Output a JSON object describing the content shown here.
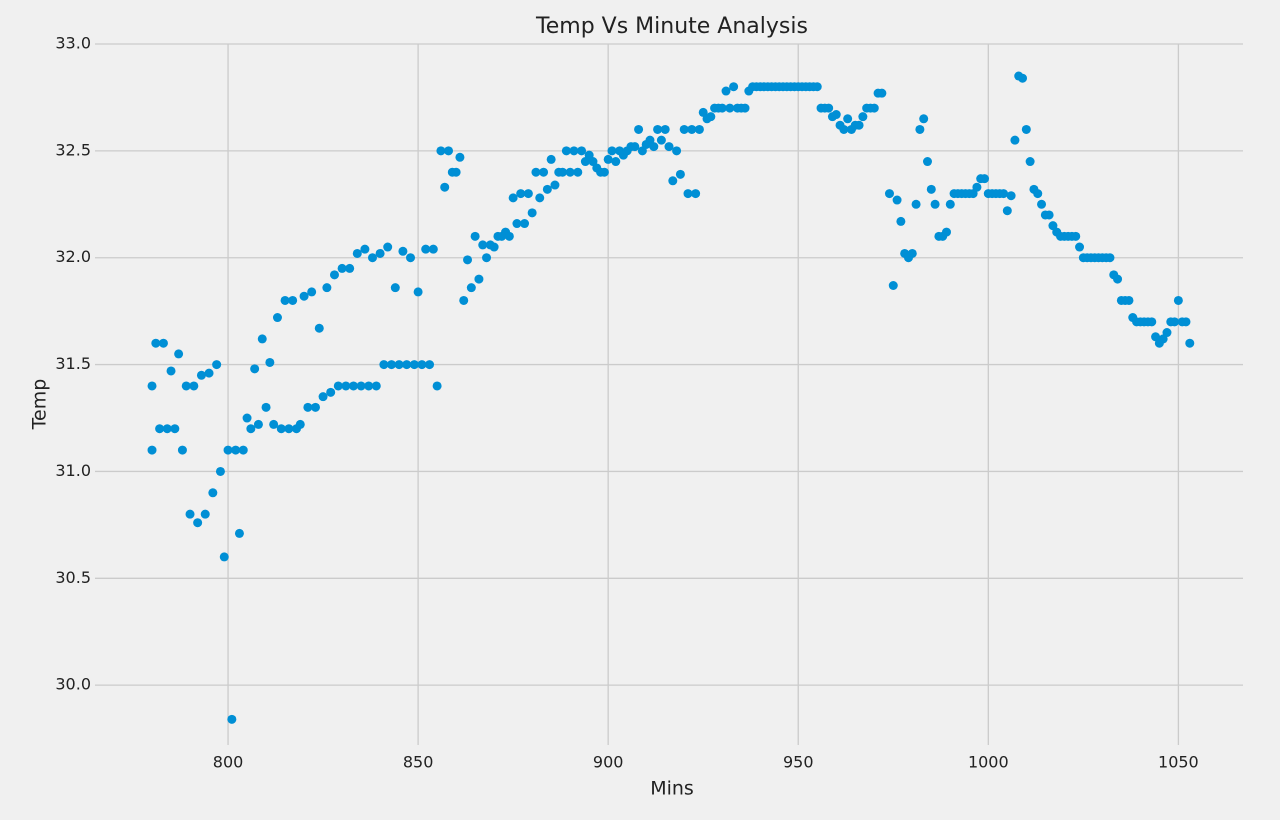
{
  "chart_data": {
    "type": "scatter",
    "title": "Temp Vs Minute Analysis",
    "x_label": "Mins",
    "y_label": "Temp",
    "color": "#008fd5",
    "grid": true,
    "xlim": [
      765,
      1067
    ],
    "ylim": [
      29.72,
      33.0
    ],
    "xticks": [
      800,
      850,
      900,
      950,
      1000,
      1050
    ],
    "yticks": [
      {
        "value": 30,
        "label": "30.0"
      },
      30.5,
      {
        "value": 31,
        "label": "31.0"
      },
      31.5,
      {
        "value": 32,
        "label": "32.0"
      },
      32.5,
      {
        "value": 33,
        "label": "33.0"
      }
    ],
    "x": [
      780,
      780,
      781,
      782,
      783,
      784,
      785,
      786,
      787,
      788,
      789,
      790,
      791,
      792,
      793,
      794,
      795,
      796,
      797,
      798,
      799,
      800,
      801,
      802,
      803,
      804,
      805,
      806,
      807,
      808,
      809,
      810,
      811,
      812,
      813,
      814,
      815,
      816,
      817,
      818,
      819,
      820,
      821,
      822,
      823,
      824,
      825,
      826,
      827,
      828,
      829,
      830,
      831,
      832,
      833,
      834,
      835,
      836,
      837,
      838,
      839,
      840,
      841,
      842,
      843,
      844,
      845,
      846,
      847,
      848,
      849,
      850,
      851,
      852,
      853,
      854,
      855,
      856,
      857,
      858,
      859,
      860,
      861,
      862,
      863,
      864,
      865,
      866,
      867,
      868,
      869,
      870,
      871,
      872,
      873,
      874,
      875,
      876,
      877,
      878,
      879,
      880,
      881,
      882,
      883,
      884,
      885,
      886,
      887,
      888,
      889,
      890,
      891,
      892,
      893,
      894,
      895,
      896,
      897,
      898,
      899,
      900,
      901,
      902,
      903,
      904,
      905,
      906,
      907,
      908,
      909,
      910,
      911,
      912,
      913,
      914,
      915,
      916,
      917,
      918,
      919,
      920,
      921,
      922,
      923,
      924,
      925,
      926,
      927,
      928,
      929,
      930,
      931,
      932,
      933,
      934,
      935,
      936,
      937,
      938,
      939,
      940,
      941,
      942,
      943,
      944,
      945,
      946,
      947,
      948,
      949,
      950,
      951,
      952,
      953,
      954,
      955,
      956,
      957,
      958,
      959,
      960,
      961,
      962,
      963,
      964,
      965,
      966,
      967,
      968,
      969,
      970,
      971,
      972,
      974,
      975,
      976,
      977,
      978,
      979,
      980,
      981,
      982,
      983,
      984,
      985,
      986,
      987,
      988,
      989,
      990,
      991,
      992,
      993,
      994,
      995,
      996,
      997,
      998,
      999,
      1000,
      1001,
      1002,
      1003,
      1004,
      1005,
      1006,
      1007,
      1008,
      1009,
      1010,
      1011,
      1012,
      1013,
      1014,
      1015,
      1016,
      1017,
      1018,
      1019,
      1020,
      1021,
      1022,
      1023,
      1024,
      1025,
      1026,
      1027,
      1028,
      1029,
      1030,
      1031,
      1032,
      1033,
      1034,
      1035,
      1036,
      1037,
      1038,
      1039,
      1040,
      1041,
      1042,
      1043,
      1044,
      1045,
      1046,
      1047,
      1048,
      1049,
      1050,
      1051,
      1052,
      1053
    ],
    "values": [
      31.4,
      31.1,
      31.6,
      31.2,
      31.6,
      31.2,
      31.47,
      31.2,
      31.55,
      31.1,
      31.4,
      30.8,
      31.4,
      30.76,
      31.45,
      30.8,
      31.46,
      30.9,
      31.5,
      31.0,
      30.6,
      31.1,
      29.84,
      31.1,
      30.71,
      31.1,
      31.25,
      31.2,
      31.48,
      31.22,
      31.62,
      31.3,
      31.51,
      31.22,
      31.72,
      31.2,
      31.8,
      31.2,
      31.8,
      31.2,
      31.22,
      31.82,
      31.3,
      31.84,
      31.3,
      31.67,
      31.35,
      31.86,
      31.37,
      31.92,
      31.4,
      31.95,
      31.4,
      31.95,
      31.4,
      32.02,
      31.4,
      32.04,
      31.4,
      32.0,
      31.4,
      32.02,
      31.5,
      32.05,
      31.5,
      31.86,
      31.5,
      32.03,
      31.5,
      32.0,
      31.5,
      31.84,
      31.5,
      32.04,
      31.5,
      32.04,
      31.4,
      32.5,
      32.33,
      32.5,
      32.4,
      32.4,
      32.47,
      31.8,
      31.99,
      31.86,
      32.1,
      31.9,
      32.06,
      32.0,
      32.06,
      32.05,
      32.1,
      32.1,
      32.12,
      32.1,
      32.28,
      32.16,
      32.3,
      32.16,
      32.3,
      32.21,
      32.4,
      32.28,
      32.4,
      32.32,
      32.46,
      32.34,
      32.4,
      32.4,
      32.5,
      32.4,
      32.5,
      32.4,
      32.5,
      32.45,
      32.48,
      32.45,
      32.42,
      32.4,
      32.4,
      32.46,
      32.5,
      32.45,
      32.5,
      32.48,
      32.5,
      32.52,
      32.52,
      32.6,
      32.5,
      32.53,
      32.55,
      32.52,
      32.6,
      32.55,
      32.6,
      32.52,
      32.36,
      32.5,
      32.39,
      32.6,
      32.3,
      32.6,
      32.3,
      32.6,
      32.68,
      32.65,
      32.66,
      32.7,
      32.7,
      32.7,
      32.78,
      32.7,
      32.8,
      32.7,
      32.7,
      32.7,
      32.78,
      32.8,
      32.8,
      32.8,
      32.8,
      32.8,
      32.8,
      32.8,
      32.8,
      32.8,
      32.8,
      32.8,
      32.8,
      32.8,
      32.8,
      32.8,
      32.8,
      32.8,
      32.8,
      32.7,
      32.7,
      32.7,
      32.66,
      32.67,
      32.62,
      32.6,
      32.65,
      32.6,
      32.62,
      32.62,
      32.66,
      32.7,
      32.7,
      32.7,
      32.77,
      32.77,
      32.3,
      31.87,
      32.27,
      32.17,
      32.02,
      32.0,
      32.02,
      32.25,
      32.6,
      32.65,
      32.45,
      32.32,
      32.25,
      32.1,
      32.1,
      32.12,
      32.25,
      32.3,
      32.3,
      32.3,
      32.3,
      32.3,
      32.3,
      32.33,
      32.37,
      32.37,
      32.3,
      32.3,
      32.3,
      32.3,
      32.3,
      32.22,
      32.29,
      32.55,
      32.85,
      32.84,
      32.6,
      32.45,
      32.32,
      32.3,
      32.25,
      32.2,
      32.2,
      32.15,
      32.12,
      32.1,
      32.1,
      32.1,
      32.1,
      32.1,
      32.05,
      32.0,
      32.0,
      32.0,
      32.0,
      32.0,
      32.0,
      32.0,
      32.0,
      31.92,
      31.9,
      31.8,
      31.8,
      31.8,
      31.72,
      31.7,
      31.7,
      31.7,
      31.7,
      31.7,
      31.63,
      31.6,
      31.62,
      31.65,
      31.7,
      31.7,
      31.8,
      31.7,
      31.7,
      31.6
    ]
  }
}
